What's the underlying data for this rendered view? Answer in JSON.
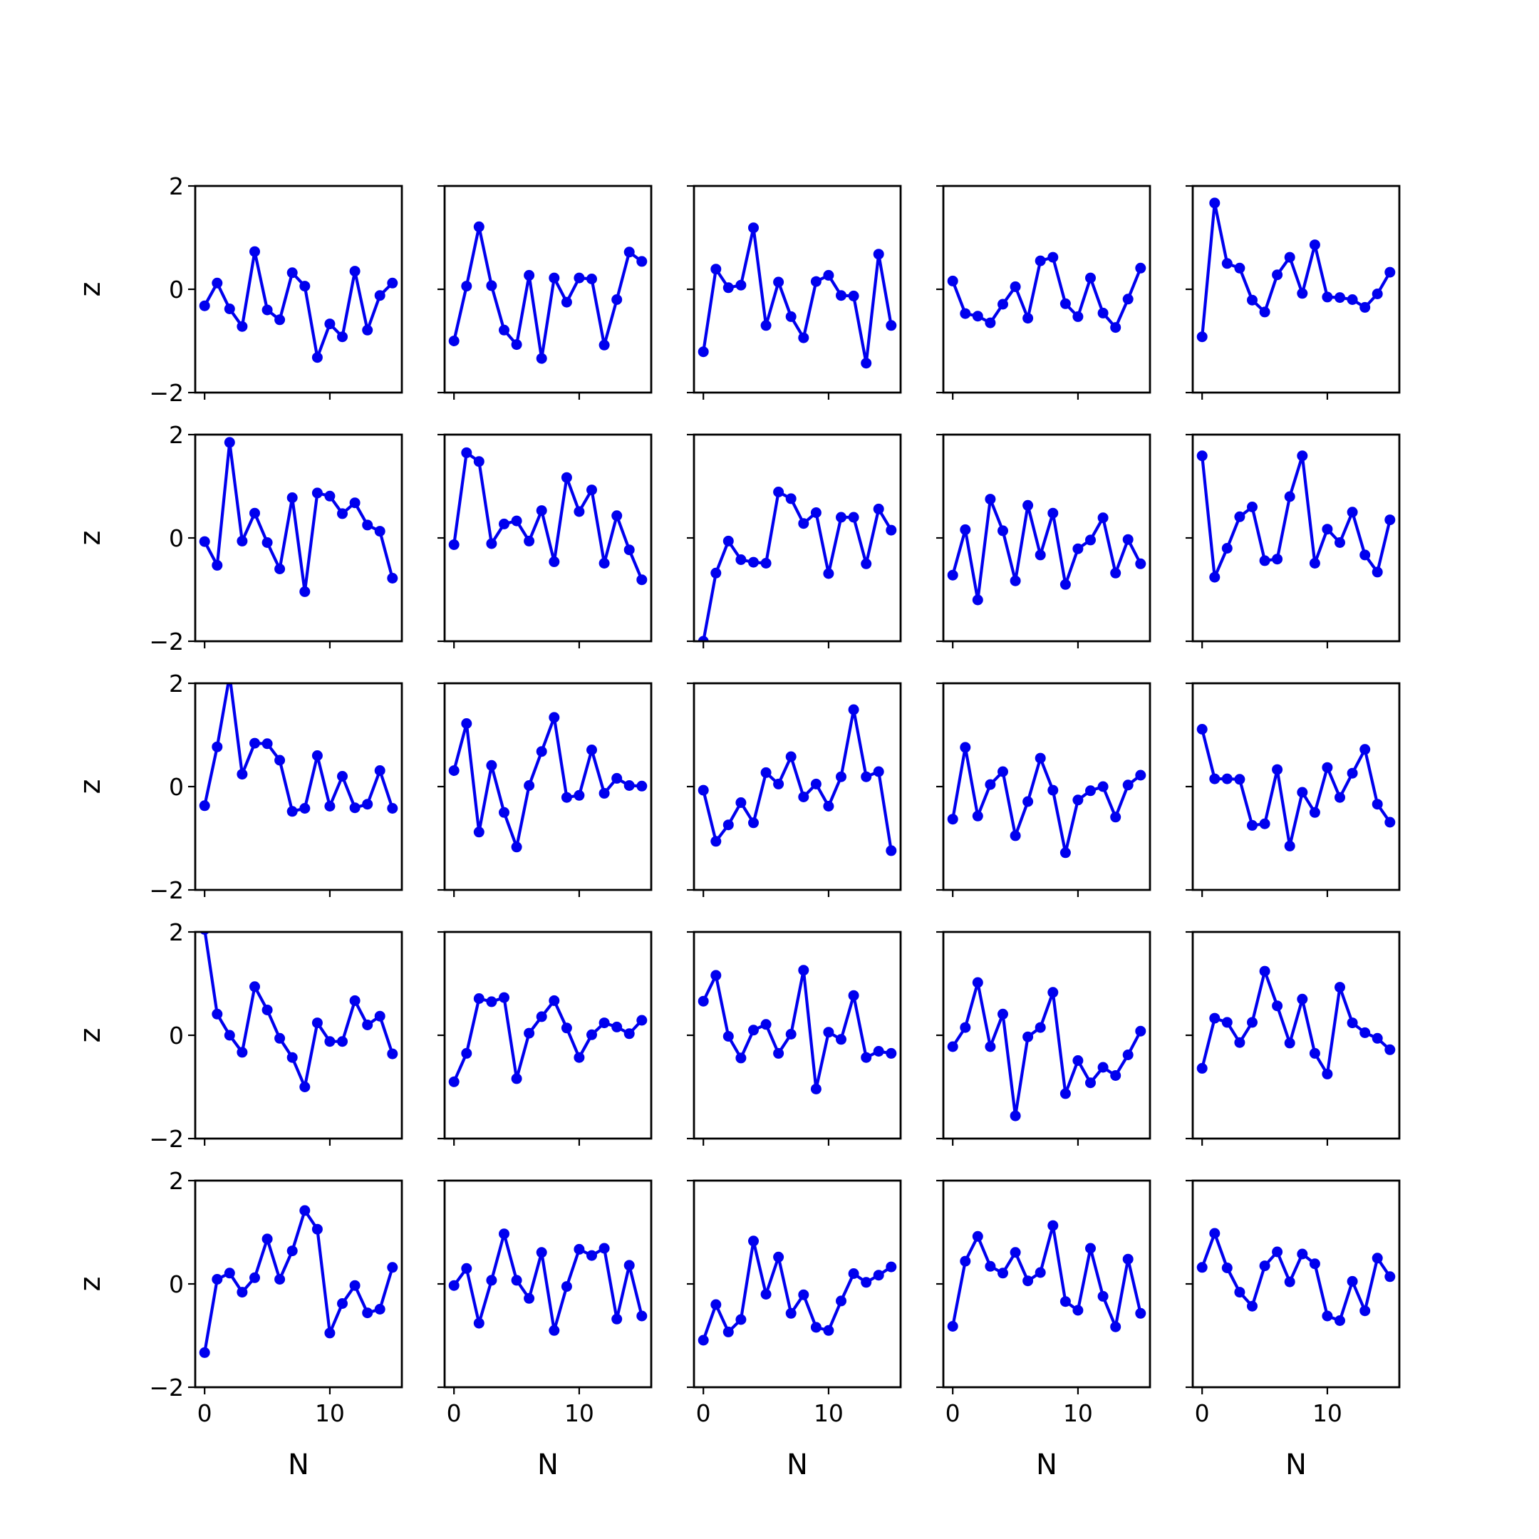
{
  "chart_data": {
    "type": "line",
    "layout": {
      "rows": 5,
      "cols": 5,
      "sharex": true,
      "sharey": true
    },
    "xlabel": "N",
    "ylabel": "z",
    "xlim": [
      -0.75,
      15.75
    ],
    "ylim": [
      -2,
      2
    ],
    "xticks": [
      0,
      10
    ],
    "xtick_labels": [
      "0",
      "10"
    ],
    "yticks": [
      -2,
      0,
      2
    ],
    "ytick_labels": [
      "−2",
      "0",
      "2"
    ],
    "line_color": "#0000ee",
    "x": [
      0,
      1,
      2,
      3,
      4,
      5,
      6,
      7,
      8,
      9,
      10,
      11,
      12,
      13,
      14,
      15
    ],
    "panels": [
      {
        "row": 0,
        "col": 0,
        "values": [
          -0.32,
          0.12,
          -0.38,
          -0.72,
          0.73,
          -0.4,
          -0.59,
          0.32,
          0.06,
          -1.32,
          -0.67,
          -0.92,
          0.35,
          -0.79,
          -0.12,
          0.12
        ]
      },
      {
        "row": 0,
        "col": 1,
        "values": [
          -1.0,
          0.06,
          1.21,
          0.07,
          -0.79,
          -1.07,
          0.27,
          -1.34,
          0.22,
          -0.25,
          0.22,
          0.2,
          -1.08,
          -0.2,
          0.72,
          0.54
        ]
      },
      {
        "row": 0,
        "col": 2,
        "values": [
          -1.21,
          0.39,
          0.03,
          0.08,
          1.19,
          -0.7,
          0.14,
          -0.53,
          -0.94,
          0.15,
          0.27,
          -0.12,
          -0.13,
          -1.43,
          0.68,
          -0.7
        ]
      },
      {
        "row": 0,
        "col": 3,
        "values": [
          0.16,
          -0.47,
          -0.52,
          -0.65,
          -0.29,
          0.05,
          -0.56,
          0.55,
          0.62,
          -0.28,
          -0.53,
          0.22,
          -0.46,
          -0.74,
          -0.19,
          0.41
        ]
      },
      {
        "row": 0,
        "col": 4,
        "values": [
          -0.92,
          1.67,
          0.5,
          0.41,
          -0.21,
          -0.44,
          0.28,
          0.62,
          -0.08,
          0.86,
          -0.15,
          -0.16,
          -0.2,
          -0.35,
          -0.09,
          0.33
        ]
      },
      {
        "row": 1,
        "col": 0,
        "values": [
          -0.07,
          -0.53,
          1.85,
          -0.06,
          0.48,
          -0.09,
          -0.6,
          0.78,
          -1.04,
          0.87,
          0.81,
          0.47,
          0.68,
          0.25,
          0.13,
          -0.78
        ]
      },
      {
        "row": 1,
        "col": 1,
        "values": [
          -0.13,
          1.65,
          1.48,
          -0.11,
          0.27,
          0.33,
          -0.06,
          0.53,
          -0.46,
          1.17,
          0.51,
          0.93,
          -0.49,
          0.43,
          -0.23,
          -0.81
        ]
      },
      {
        "row": 1,
        "col": 2,
        "values": [
          -2.0,
          -0.68,
          -0.06,
          -0.42,
          -0.47,
          -0.49,
          0.89,
          0.76,
          0.28,
          0.49,
          -0.69,
          0.4,
          0.4,
          -0.5,
          0.56,
          0.15
        ]
      },
      {
        "row": 1,
        "col": 3,
        "values": [
          -0.72,
          0.16,
          -1.2,
          0.75,
          0.14,
          -0.83,
          0.63,
          -0.33,
          0.48,
          -0.9,
          -0.21,
          -0.04,
          0.39,
          -0.68,
          -0.03,
          -0.5
        ]
      },
      {
        "row": 1,
        "col": 4,
        "values": [
          1.59,
          -0.76,
          -0.2,
          0.41,
          0.6,
          -0.44,
          -0.41,
          0.8,
          1.59,
          -0.49,
          0.17,
          -0.09,
          0.5,
          -0.33,
          -0.66,
          0.35
        ]
      },
      {
        "row": 2,
        "col": 0,
        "values": [
          -0.37,
          0.77,
          2.15,
          0.24,
          0.84,
          0.83,
          0.51,
          -0.48,
          -0.42,
          0.6,
          -0.38,
          0.2,
          -0.41,
          -0.34,
          0.31,
          -0.42
        ]
      },
      {
        "row": 2,
        "col": 1,
        "values": [
          0.31,
          1.22,
          -0.88,
          0.41,
          -0.5,
          -1.17,
          0.02,
          0.68,
          1.34,
          -0.21,
          -0.17,
          0.71,
          -0.13,
          0.16,
          0.02,
          0.01
        ]
      },
      {
        "row": 2,
        "col": 2,
        "values": [
          -0.07,
          -1.06,
          -0.74,
          -0.31,
          -0.7,
          0.27,
          0.05,
          0.58,
          -0.2,
          0.05,
          -0.38,
          0.19,
          1.49,
          0.19,
          0.29,
          -1.24
        ]
      },
      {
        "row": 2,
        "col": 3,
        "values": [
          -0.63,
          0.76,
          -0.57,
          0.04,
          0.29,
          -0.95,
          -0.29,
          0.55,
          -0.07,
          -1.28,
          -0.26,
          -0.08,
          0.0,
          -0.59,
          0.03,
          0.22
        ]
      },
      {
        "row": 2,
        "col": 4,
        "values": [
          1.11,
          0.15,
          0.15,
          0.14,
          -0.75,
          -0.72,
          0.33,
          -1.15,
          -0.11,
          -0.5,
          0.37,
          -0.21,
          0.26,
          0.72,
          -0.34,
          -0.69
        ]
      },
      {
        "row": 3,
        "col": 0,
        "values": [
          2.05,
          0.41,
          0.0,
          -0.33,
          0.94,
          0.49,
          -0.06,
          -0.43,
          -1.0,
          0.24,
          -0.12,
          -0.12,
          0.67,
          0.2,
          0.37,
          -0.36
        ]
      },
      {
        "row": 3,
        "col": 1,
        "values": [
          -0.9,
          -0.35,
          0.71,
          0.65,
          0.73,
          -0.84,
          0.04,
          0.36,
          0.67,
          0.14,
          -0.43,
          0.01,
          0.24,
          0.16,
          0.03,
          0.29
        ]
      },
      {
        "row": 3,
        "col": 2,
        "values": [
          0.66,
          1.16,
          -0.02,
          -0.44,
          0.1,
          0.21,
          -0.35,
          0.02,
          1.26,
          -1.04,
          0.06,
          -0.08,
          0.77,
          -0.43,
          -0.31,
          -0.35
        ]
      },
      {
        "row": 3,
        "col": 3,
        "values": [
          -0.22,
          0.15,
          1.02,
          -0.22,
          0.41,
          -1.56,
          -0.03,
          0.15,
          0.83,
          -1.13,
          -0.49,
          -0.92,
          -0.62,
          -0.78,
          -0.38,
          0.08
        ]
      },
      {
        "row": 3,
        "col": 4,
        "values": [
          -0.64,
          0.33,
          0.25,
          -0.14,
          0.25,
          1.24,
          0.57,
          -0.15,
          0.7,
          -0.35,
          -0.75,
          0.93,
          0.24,
          0.05,
          -0.06,
          -0.28
        ]
      },
      {
        "row": 4,
        "col": 0,
        "values": [
          -1.33,
          0.09,
          0.21,
          -0.16,
          0.12,
          0.87,
          0.09,
          0.64,
          1.42,
          1.06,
          -0.95,
          -0.38,
          -0.03,
          -0.56,
          -0.49,
          0.32
        ]
      },
      {
        "row": 4,
        "col": 1,
        "values": [
          -0.03,
          0.3,
          -0.76,
          0.07,
          0.97,
          0.07,
          -0.28,
          0.61,
          -0.9,
          -0.05,
          0.67,
          0.55,
          0.69,
          -0.68,
          0.36,
          -0.62
        ]
      },
      {
        "row": 4,
        "col": 2,
        "values": [
          -1.09,
          -0.4,
          -0.93,
          -0.69,
          0.83,
          -0.2,
          0.52,
          -0.57,
          -0.21,
          -0.84,
          -0.9,
          -0.33,
          0.2,
          0.03,
          0.17,
          0.33
        ]
      },
      {
        "row": 4,
        "col": 3,
        "values": [
          -0.82,
          0.44,
          0.92,
          0.34,
          0.21,
          0.61,
          0.06,
          0.22,
          1.13,
          -0.34,
          -0.51,
          0.69,
          -0.24,
          -0.83,
          0.48,
          -0.57
        ]
      },
      {
        "row": 4,
        "col": 4,
        "values": [
          0.32,
          0.98,
          0.31,
          -0.16,
          -0.43,
          0.35,
          0.62,
          0.04,
          0.58,
          0.39,
          -0.62,
          -0.71,
          0.05,
          -0.52,
          0.5,
          0.14
        ]
      }
    ]
  }
}
